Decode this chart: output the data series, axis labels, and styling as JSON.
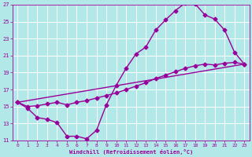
{
  "title": "",
  "xlabel": "Windchill (Refroidissement éolien,°C)",
  "ylabel": "",
  "xlim": [
    -0.5,
    23.5
  ],
  "ylim": [
    11,
    27
  ],
  "xticks": [
    0,
    1,
    2,
    3,
    4,
    5,
    6,
    7,
    8,
    9,
    10,
    11,
    12,
    13,
    14,
    15,
    16,
    17,
    18,
    19,
    20,
    21,
    22,
    23
  ],
  "yticks": [
    11,
    13,
    15,
    17,
    19,
    21,
    23,
    25,
    27
  ],
  "bg_color": "#b2e8e8",
  "grid_color": "#ffffff",
  "line_color": "#990099",
  "line1_x": [
    0,
    1,
    2,
    3,
    4,
    5,
    6,
    7,
    8,
    9,
    10,
    11,
    12,
    13,
    14,
    15,
    16,
    17,
    18,
    19,
    20,
    21,
    22,
    23
  ],
  "line1_y": [
    15.5,
    14.8,
    13.7,
    13.5,
    13.1,
    11.5,
    11.5,
    11.2,
    12.2,
    15.2,
    17.5,
    19.5,
    21.2,
    22.0,
    24.0,
    25.2,
    26.3,
    27.2,
    27.1,
    25.8,
    25.3,
    24.0,
    21.4,
    20.0
  ],
  "line2_x": [
    0,
    1,
    2,
    3,
    4,
    5,
    6,
    7,
    8,
    9,
    10,
    11,
    12,
    13,
    14,
    15,
    16,
    17,
    18,
    19,
    20,
    21,
    22,
    23
  ],
  "line2_y": [
    15.5,
    15.0,
    15.1,
    15.3,
    15.5,
    15.2,
    15.5,
    15.7,
    16.0,
    16.3,
    16.6,
    17.0,
    17.4,
    17.8,
    18.3,
    18.7,
    19.1,
    19.5,
    19.8,
    20.0,
    19.9,
    20.1,
    20.2,
    20.0
  ],
  "line3_x": [
    0,
    23
  ],
  "line3_y": [
    15.5,
    20.0
  ],
  "marker": "D",
  "markersize": 2.5,
  "linewidth": 1.0
}
